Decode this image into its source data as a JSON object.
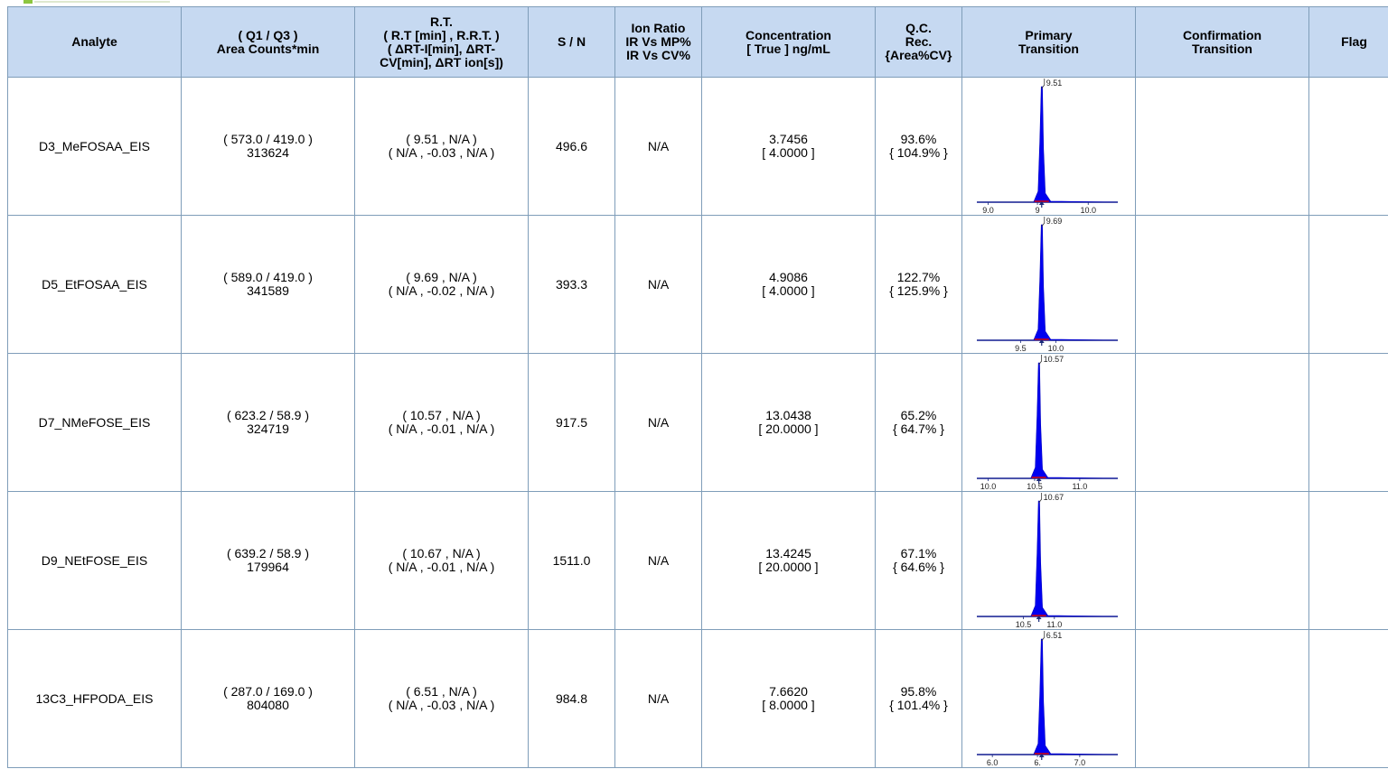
{
  "headers": {
    "analyte": [
      "Analyte"
    ],
    "area": [
      "( Q1 / Q3 )",
      "Area Counts*min"
    ],
    "rt": [
      "R.T.",
      "( R.T [min] , R.R.T. )",
      "( ΔRT-I[min], ΔRT-",
      "CV[min], ΔRT ion[s])"
    ],
    "sn": [
      "S / N"
    ],
    "ion": [
      "Ion Ratio",
      "IR Vs MP%",
      "IR Vs CV%"
    ],
    "conc": [
      "Concentration",
      "[ True ] ng/mL"
    ],
    "qc": [
      "Q.C.",
      "Rec.",
      "{Area%CV}"
    ],
    "primary": [
      "Primary",
      "Transition"
    ],
    "confirm": [
      "Confirmation",
      "Transition"
    ],
    "flag": [
      "Flag"
    ]
  },
  "rows": [
    {
      "analyte": "D3_MeFOSAA_EIS",
      "area_q": "( 573.0 / 419.0 )",
      "area_v": "313624",
      "rt_1": "( 9.51 , N/A )",
      "rt_2": "( N/A , -0.03 , N/A )",
      "sn": "496.6",
      "ion": "N/A",
      "conc_1": "3.7456",
      "conc_2": "[ 4.0000 ]",
      "qc_1": "93.6%",
      "qc_2": "{ 104.9% }",
      "chrom": {
        "peak_label": "9.51",
        "ticks": [
          {
            "label": "9.0",
            "pos": 0.08
          },
          {
            "label": "9",
            "pos": 0.43
          },
          {
            "label": "10.0",
            "pos": 0.79
          }
        ],
        "peak_pos": 0.46
      }
    },
    {
      "analyte": "D5_EtFOSAA_EIS",
      "area_q": "( 589.0 / 419.0 )",
      "area_v": "341589",
      "rt_1": "( 9.69 , N/A )",
      "rt_2": "( N/A , -0.02 , N/A )",
      "sn": "393.3",
      "ion": "N/A",
      "conc_1": "4.9086",
      "conc_2": "[ 4.0000 ]",
      "qc_1": "122.7%",
      "qc_2": "{ 125.9% }",
      "chrom": {
        "peak_label": "9.69",
        "ticks": [
          {
            "label": "9.5",
            "pos": 0.31
          },
          {
            "label": "10.0",
            "pos": 0.56
          }
        ],
        "peak_pos": 0.46
      }
    },
    {
      "analyte": "D7_NMeFOSE_EIS",
      "area_q": "( 623.2 / 58.9 )",
      "area_v": "324719",
      "rt_1": "( 10.57 , N/A )",
      "rt_2": "( N/A , -0.01 , N/A )",
      "sn": "917.5",
      "ion": "N/A",
      "conc_1": "13.0438",
      "conc_2": "[ 20.0000 ]",
      "qc_1": "65.2%",
      "qc_2": "{ 64.7% }",
      "chrom": {
        "peak_label": "10.57",
        "ticks": [
          {
            "label": "10.0",
            "pos": 0.08
          },
          {
            "label": "10.5",
            "pos": 0.41
          },
          {
            "label": "11.0",
            "pos": 0.73
          }
        ],
        "peak_pos": 0.44
      }
    },
    {
      "analyte": "D9_NEtFOSE_EIS",
      "area_q": "( 639.2 / 58.9 )",
      "area_v": "179964",
      "rt_1": "( 10.67 , N/A )",
      "rt_2": "( N/A , -0.01 , N/A )",
      "sn": "1511.0",
      "ion": "N/A",
      "conc_1": "13.4245",
      "conc_2": "[ 20.0000 ]",
      "qc_1": "67.1%",
      "qc_2": "{ 64.6% }",
      "chrom": {
        "peak_label": "10.67",
        "ticks": [
          {
            "label": "10.5",
            "pos": 0.33
          },
          {
            "label": "11.0",
            "pos": 0.55
          }
        ],
        "peak_pos": 0.44
      }
    },
    {
      "analyte": "13C3_HFPODA_EIS",
      "area_q": "( 287.0 / 169.0 )",
      "area_v": "804080",
      "rt_1": "( 6.51 , N/A )",
      "rt_2": "( N/A , -0.03 , N/A )",
      "sn": "984.8",
      "ion": "N/A",
      "conc_1": "7.6620",
      "conc_2": "[ 8.0000 ]",
      "qc_1": "95.8%",
      "qc_2": "{ 101.4% }",
      "chrom": {
        "peak_label": "6.51",
        "ticks": [
          {
            "label": "6.0",
            "pos": 0.11
          },
          {
            "label": "6.",
            "pos": 0.43
          },
          {
            "label": "7.0",
            "pos": 0.73
          }
        ],
        "peak_pos": 0.46
      }
    }
  ]
}
